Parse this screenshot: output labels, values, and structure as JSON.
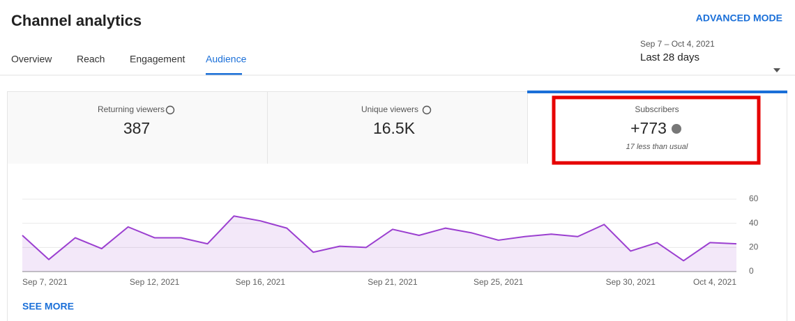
{
  "header": {
    "title": "Channel analytics",
    "advanced_mode": "ADVANCED MODE"
  },
  "tabs": [
    "Overview",
    "Reach",
    "Engagement",
    "Audience"
  ],
  "date_range": {
    "range": "Sep 7 – Oct 4, 2021",
    "label": "Last 28 days"
  },
  "metrics": [
    {
      "label": "Returning viewers",
      "value": "387"
    },
    {
      "label": "Unique viewers",
      "value": "16.5K"
    },
    {
      "label": "Subscribers",
      "value": "+773",
      "note": "17 less than usual"
    }
  ],
  "chart_data": {
    "type": "area",
    "categories": [
      "Sep 7, 2021",
      null,
      null,
      null,
      null,
      "Sep 12, 2021",
      null,
      null,
      null,
      "Sep 16, 2021",
      null,
      null,
      null,
      null,
      "Sep 21, 2021",
      null,
      null,
      null,
      "Sep 25, 2021",
      null,
      null,
      null,
      null,
      "Sep 30, 2021",
      null,
      null,
      null,
      "Oct 4, 2021"
    ],
    "values": [
      30,
      10,
      28,
      19,
      37,
      28,
      28,
      23,
      46,
      42,
      36,
      16,
      21,
      20,
      35,
      30,
      36,
      32,
      26,
      29,
      31,
      29,
      39,
      17,
      24,
      9,
      24,
      23
    ],
    "color": "#9b3fd0",
    "ylim": [
      0,
      60
    ],
    "yticks": [
      0,
      20,
      40,
      60
    ],
    "grid": true
  },
  "see_more": "SEE MORE"
}
